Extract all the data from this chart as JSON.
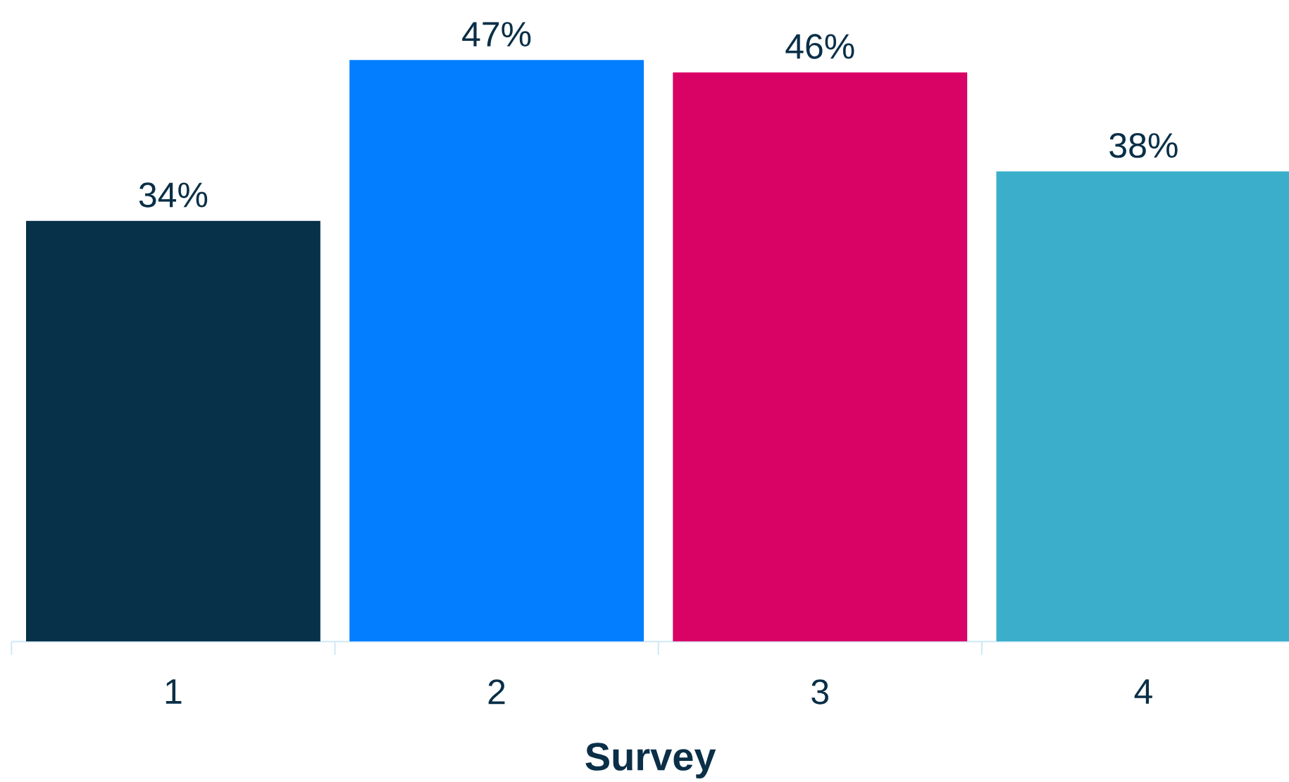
{
  "chart_data": {
    "type": "bar",
    "xlabel": "Survey",
    "categories": [
      "1",
      "2",
      "3",
      "4"
    ],
    "values": [
      34,
      47,
      46,
      38
    ],
    "value_labels": [
      "34%",
      "47%",
      "46%",
      "38%"
    ],
    "colors": [
      "#073049",
      "#037eff",
      "#d90366",
      "#3aaecb"
    ]
  }
}
